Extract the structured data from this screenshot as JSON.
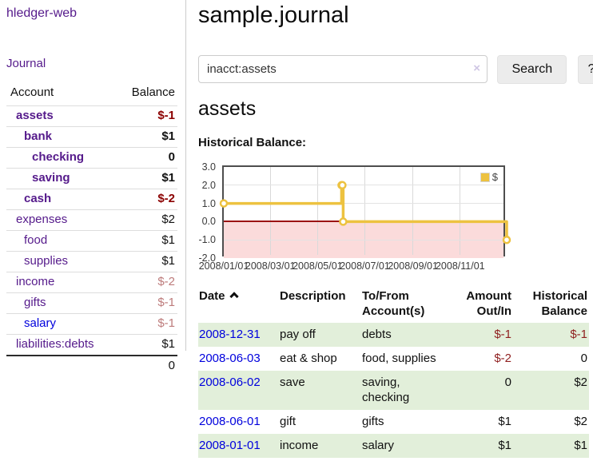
{
  "colors": {
    "link_visited": "#551a8b",
    "link_unvisited": "#0000dd",
    "negative_strong": "#8b0000",
    "negative_muted": "#bd7b7b",
    "register_negative": "#8f1f1f",
    "striped_row_green": "#e2efda",
    "chart_line_gold": "#edc240",
    "chart_negative_bg": "#fbdbdb",
    "chart_zero_line": "#9b1313"
  },
  "app": {
    "brand": "hledger-web",
    "nav_journal": "Journal"
  },
  "sidebar": {
    "account_header": "Account",
    "balance_header": "Balance",
    "accounts": [
      {
        "name": "assets",
        "balance": "$-1",
        "level": 1,
        "bold": true,
        "value_style": "neg-strong"
      },
      {
        "name": "bank",
        "balance": "$1",
        "level": 2,
        "bold": true,
        "value_style": "normal"
      },
      {
        "name": "checking",
        "balance": "0",
        "level": 3,
        "bold": true,
        "value_style": "normal"
      },
      {
        "name": "saving",
        "balance": "$1",
        "level": 3,
        "bold": true,
        "value_style": "normal"
      },
      {
        "name": "cash",
        "balance": "$-2",
        "level": 2,
        "bold": true,
        "value_style": "neg-strong"
      },
      {
        "name": "expenses",
        "balance": "$2",
        "level": 1,
        "bold": false,
        "value_style": "normal"
      },
      {
        "name": "food",
        "balance": "$1",
        "level": 2,
        "bold": false,
        "value_style": "normal"
      },
      {
        "name": "supplies",
        "balance": "$1",
        "level": 2,
        "bold": false,
        "value_style": "normal"
      },
      {
        "name": "income",
        "balance": "$-2",
        "level": 1,
        "bold": false,
        "value_style": "neg-muted"
      },
      {
        "name": "gifts",
        "balance": "$-1",
        "level": 2,
        "bold": false,
        "value_style": "neg-muted"
      },
      {
        "name": "salary",
        "balance": "$-1",
        "level": 2,
        "bold": false,
        "value_style": "neg-muted",
        "link": "unvisited"
      },
      {
        "name": "liabilities:debts",
        "balance": "$1",
        "level": 1,
        "bold": false,
        "value_style": "normal"
      }
    ],
    "total": "0"
  },
  "main": {
    "title": "sample.journal",
    "search": {
      "value": "inacct:assets",
      "clear": "×",
      "submit": "Search",
      "help": "?"
    },
    "account_heading": "assets",
    "chart_label": "Historical Balance:"
  },
  "chart_data": {
    "type": "line",
    "title": "Historical Balance",
    "step": true,
    "xlabel": "",
    "ylabel": "",
    "ylim": [
      -2,
      3
    ],
    "x_range": [
      "2008-01-01",
      "2008-12-31"
    ],
    "yticks": [
      "3.0",
      "2.0",
      "1.0",
      "0.0",
      "-1.0",
      "-2.0"
    ],
    "xticks": [
      "2008/01/01",
      "2008/03/01",
      "2008/05/01",
      "2008/07/01",
      "2008/09/01",
      "2008/11/01"
    ],
    "grid": true,
    "negative_region_shaded": true,
    "legend_position": "top-right",
    "series": [
      {
        "name": "$",
        "points": [
          [
            "2008-01-01",
            1
          ],
          [
            "2008-06-01",
            2
          ],
          [
            "2008-06-02",
            2
          ],
          [
            "2008-06-03",
            0
          ],
          [
            "2008-12-31",
            -1
          ]
        ]
      }
    ]
  },
  "register": {
    "headers": [
      {
        "label": "Date",
        "sorted_ascending": true
      },
      {
        "label": "Description"
      },
      {
        "label": "To/From Account(s)"
      },
      {
        "label": "Amount Out/In",
        "align": "right"
      },
      {
        "label": "Historical Balance",
        "align": "right"
      }
    ],
    "rows": [
      {
        "date": "2008-12-31",
        "description": "pay off",
        "accounts": "debts",
        "amount": "$-1",
        "amount_negative": true,
        "balance": "$-1",
        "balance_negative": true
      },
      {
        "date": "2008-06-03",
        "description": "eat & shop",
        "accounts": "food, supplies",
        "amount": "$-2",
        "amount_negative": true,
        "balance": "0",
        "balance_negative": false
      },
      {
        "date": "2008-06-02",
        "description": "save",
        "accounts": "saving, checking",
        "amount": "0",
        "amount_negative": false,
        "balance": "$2",
        "balance_negative": false
      },
      {
        "date": "2008-06-01",
        "description": "gift",
        "accounts": "gifts",
        "amount": "$1",
        "amount_negative": false,
        "balance": "$2",
        "balance_negative": false
      },
      {
        "date": "2008-01-01",
        "description": "income",
        "accounts": "salary",
        "amount": "$1",
        "amount_negative": false,
        "balance": "$1",
        "balance_negative": false
      }
    ]
  }
}
